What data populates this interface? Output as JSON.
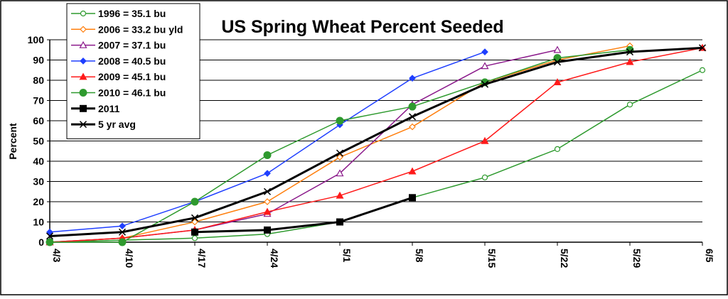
{
  "chart_data": {
    "type": "line",
    "title": "US Spring Wheat Percent Seeded",
    "xlabel": "",
    "ylabel": "Percent",
    "ylim": [
      0,
      100
    ],
    "yticks": [
      0,
      10,
      20,
      30,
      40,
      50,
      60,
      70,
      80,
      90,
      100
    ],
    "categories": [
      "4/3",
      "4/10",
      "4/17",
      "4/24",
      "5/1",
      "5/8",
      "5/15",
      "5/22",
      "5/29",
      "6/5"
    ],
    "grid": true,
    "legend_position": "top-left",
    "series": [
      {
        "name": "1996 = 35.1 bu",
        "color": "#2e9a2e",
        "marker": "circle-open",
        "values": [
          0,
          1,
          2,
          4,
          10,
          22,
          32,
          46,
          68,
          85
        ]
      },
      {
        "name": "2006 = 33.2 bu yld",
        "color": "#ff7f0e",
        "marker": "diamond-open",
        "values": [
          0,
          2,
          10,
          20,
          42,
          57,
          79,
          90,
          97,
          null
        ]
      },
      {
        "name": "2007 = 37.1 bu",
        "color": "#8b1a8b",
        "marker": "triangle-open",
        "values": [
          0,
          2,
          6,
          14,
          34,
          68,
          87,
          95,
          null,
          null
        ]
      },
      {
        "name": "2008 = 40.5 bu",
        "color": "#1f3fff",
        "marker": "diamond-filled",
        "values": [
          5,
          8,
          20,
          34,
          58,
          81,
          94,
          null,
          null,
          null
        ]
      },
      {
        "name": "2009 = 45.1 bu",
        "color": "#ff1a1a",
        "marker": "triangle-filled",
        "values": [
          0,
          2,
          6,
          15,
          23,
          35,
          50,
          79,
          89,
          96
        ]
      },
      {
        "name": "2010 = 46.1 bu",
        "color": "#2e9a2e",
        "marker": "circle-filled",
        "values": [
          0,
          0,
          20,
          43,
          60,
          67,
          79,
          91,
          95,
          null
        ]
      },
      {
        "name": "2011",
        "color": "#000000",
        "marker": "square-filled",
        "values": [
          null,
          null,
          5,
          6,
          10,
          22,
          null,
          null,
          null,
          null
        ]
      },
      {
        "name": "5 yr avg",
        "color": "#000000",
        "marker": "x",
        "values": [
          3,
          5,
          12,
          25,
          44,
          62,
          78,
          89,
          94,
          96
        ]
      }
    ]
  }
}
